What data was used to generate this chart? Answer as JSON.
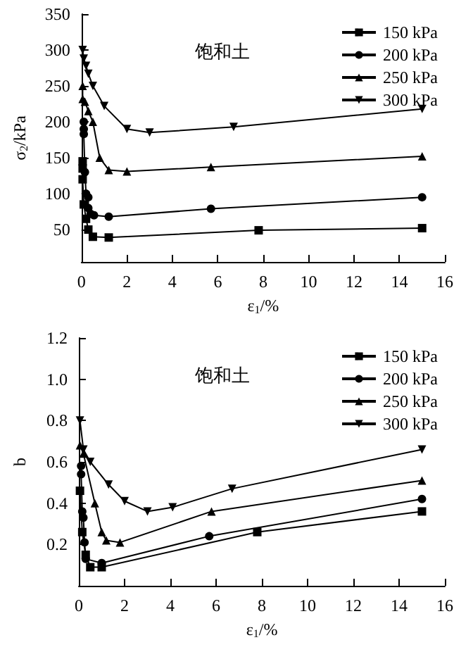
{
  "chart_data": [
    {
      "type": "line",
      "xlabel": "ε$_{1}$/%",
      "ylabel": "σ$_{2}$/kPa",
      "annotations": [
        "饱和土"
      ],
      "xlim": [
        0,
        16
      ],
      "xticks": [
        0,
        2,
        4,
        6,
        8,
        10,
        12,
        14,
        16
      ],
      "ylim": [
        5,
        350
      ],
      "yticks": [
        50,
        100,
        150,
        200,
        250,
        300,
        350
      ],
      "grid": false,
      "legend": "top right",
      "series": [
        {
          "name": "150 kPa",
          "color": "#000000",
          "marker": "square",
          "x": [
            0.05,
            0.05,
            0.05,
            0.1,
            0.2,
            0.3,
            0.5,
            1.2,
            7.8,
            15
          ],
          "values": [
            145,
            135,
            120,
            85,
            65,
            50,
            40,
            39,
            49,
            52
          ]
        },
        {
          "name": "200 kPa",
          "color": "#000000",
          "marker": "circle",
          "x": [
            0.1,
            0.1,
            0.1,
            0.15,
            0.2,
            0.3,
            0.3,
            0.4,
            0.55,
            1.2,
            5.7,
            15
          ],
          "values": [
            200,
            190,
            183,
            130,
            100,
            95,
            80,
            72,
            70,
            68,
            79,
            95
          ]
        },
        {
          "name": "250 kPa",
          "color": "#000000",
          "marker": "triangle",
          "x": [
            0.05,
            0.05,
            0.15,
            0.3,
            0.5,
            0.8,
            1.2,
            2,
            5.7,
            15
          ],
          "values": [
            250,
            232,
            228,
            215,
            200,
            150,
            133,
            131,
            137,
            152
          ]
        },
        {
          "name": "300 kPa",
          "color": "#000000",
          "marker": "triangle_down",
          "x": [
            0.05,
            0.1,
            0.2,
            0.3,
            0.5,
            1,
            2,
            3,
            6.7,
            15
          ],
          "values": [
            300,
            288,
            278,
            267,
            250,
            222,
            190,
            185,
            193,
            218
          ]
        }
      ]
    },
    {
      "type": "line",
      "xlabel": "ε$_{1}$/%",
      "ylabel": "b",
      "annotations": [
        "饱和土"
      ],
      "xlim": [
        0,
        16
      ],
      "xticks": [
        0,
        2,
        4,
        6,
        8,
        10,
        12,
        14,
        16
      ],
      "ylim": [
        0,
        1.2
      ],
      "yticks": [
        0.2,
        0.4,
        0.6,
        0.8,
        {
          "value": 1.0,
          "label": "1.0"
        },
        1.2
      ],
      "grid": false,
      "legend": "top right",
      "series": [
        {
          "name": "150 kPa",
          "color": "#000000",
          "marker": "square",
          "x": [
            0.05,
            0.15,
            0.3,
            0.5,
            1,
            7.8,
            15
          ],
          "values": [
            0.46,
            0.26,
            0.15,
            0.09,
            0.09,
            0.26,
            0.36
          ]
        },
        {
          "name": "200 kPa",
          "color": "#000000",
          "marker": "circle",
          "x": [
            0.1,
            0.1,
            0.15,
            0.2,
            0.25,
            0.3,
            1,
            5.7,
            15
          ],
          "values": [
            0.58,
            0.54,
            0.36,
            0.33,
            0.21,
            0.13,
            0.11,
            0.24,
            0.42
          ]
        },
        {
          "name": "250 kPa",
          "color": "#000000",
          "marker": "triangle",
          "x": [
            0.05,
            0.2,
            0.7,
            1,
            1.2,
            1.8,
            5.8,
            15
          ],
          "values": [
            0.68,
            0.64,
            0.4,
            0.26,
            0.22,
            0.21,
            0.36,
            0.51
          ]
        },
        {
          "name": "300 kPa",
          "color": "#000000",
          "marker": "triangle_down",
          "x": [
            0.05,
            0.2,
            0.5,
            1.3,
            2,
            3,
            4.1,
            6.7,
            15
          ],
          "values": [
            0.8,
            0.66,
            0.6,
            0.49,
            0.41,
            0.36,
            0.38,
            0.47,
            0.66
          ]
        }
      ]
    }
  ]
}
